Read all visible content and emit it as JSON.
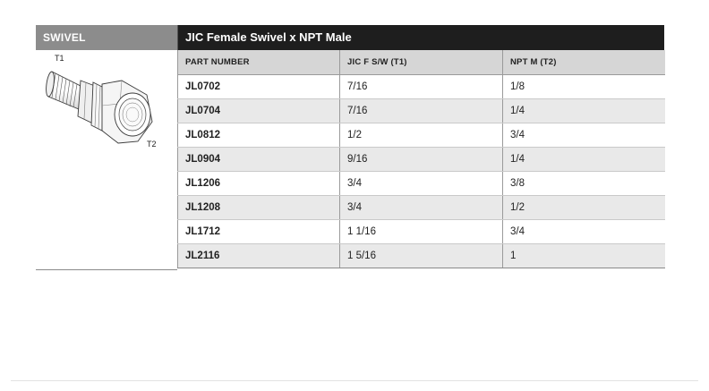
{
  "category": {
    "label": "SWIVEL"
  },
  "diagram": {
    "t1_label": "T1",
    "t2_label": "T2"
  },
  "table": {
    "title": "JIC Female Swivel x NPT Male",
    "columns": [
      "PART NUMBER",
      "JIC F S/W (T1)",
      "NPT M (T2)"
    ],
    "rows": [
      [
        "JL0702",
        "7/16",
        "1/8"
      ],
      [
        "JL0704",
        "7/16",
        "1/4"
      ],
      [
        "JL0812",
        "1/2",
        "3/4"
      ],
      [
        "JL0904",
        "9/16",
        "1/4"
      ],
      [
        "JL1206",
        "3/4",
        "3/8"
      ],
      [
        "JL1208",
        "3/4",
        "1/2"
      ],
      [
        "JL1712",
        "1 1/16",
        "3/4"
      ],
      [
        "JL2116",
        "1 5/16",
        "1"
      ]
    ]
  },
  "colors": {
    "category_header": "#8c8c8c",
    "title_bar": "#1e1e1e",
    "column_header": "#d6d6d6",
    "row_stripe": "#e9e9e9"
  }
}
